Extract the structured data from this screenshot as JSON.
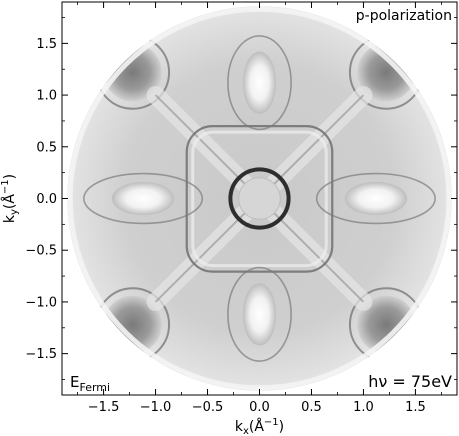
{
  "chart_data": {
    "type": "heatmap",
    "title": "",
    "xlabel": "k_x(Å^-1)",
    "ylabel": "k_y(Å^-1)",
    "xlim": [
      -1.9,
      1.9
    ],
    "ylim": [
      -1.9,
      1.9
    ],
    "x_ticks": [
      -1.5,
      -1.0,
      -0.5,
      0.0,
      0.5,
      1.0,
      1.5
    ],
    "y_ticks": [
      -1.5,
      -1.0,
      -0.5,
      0.0,
      0.5,
      1.0,
      1.5
    ],
    "x_tick_labels": [
      "−1.5",
      "−1.0",
      "−0.5",
      "0.0",
      "0.5",
      "1.0",
      "1.5"
    ],
    "y_tick_labels": [
      "−1.5",
      "−1.0",
      "−0.5",
      "0.0",
      "0.5",
      "1.0",
      "1.5"
    ],
    "grid": false,
    "colormap": "grayscale (white = high intensity, dark = low)",
    "map_extent_radius": 1.85,
    "annotations": {
      "top_right": "p-polarization",
      "bottom_left": "E_Fermi",
      "bottom_right": "hν = 75eV"
    },
    "features": {
      "central_ring_radius": 0.28,
      "central_disc_radius": 0.2,
      "bright_ellipses": [
        {
          "center": [
            0.0,
            1.12
          ],
          "rx": 0.16,
          "ry": 0.3
        },
        {
          "center": [
            0.0,
            -1.12
          ],
          "rx": 0.16,
          "ry": 0.3
        },
        {
          "center": [
            -1.12,
            0.0
          ],
          "rx": 0.3,
          "ry": 0.16
        },
        {
          "center": [
            1.12,
            0.0
          ],
          "rx": 0.3,
          "ry": 0.16
        }
      ],
      "dark_lobes": [
        {
          "center": [
            -1.22,
            1.22
          ],
          "r": 0.28
        },
        {
          "center": [
            1.22,
            1.22
          ],
          "r": 0.28
        },
        {
          "center": [
            -1.22,
            -1.22
          ],
          "r": 0.28
        },
        {
          "center": [
            1.22,
            -1.22
          ],
          "r": 0.28
        }
      ],
      "square_pocket_half_width": 0.7,
      "diagonal_cross_extent": 1.0
    }
  },
  "labels": {
    "xlabel_main": "k",
    "xlabel_sub": "x",
    "xlabel_rest": "(Å",
    "xlabel_sup": "−1",
    "xlabel_end": ")",
    "ylabel_main": "k",
    "ylabel_sub": "y",
    "ylabel_rest": "(Å",
    "ylabel_sup": "−1",
    "ylabel_end": ")",
    "polarization": "p-polarization",
    "energy_main": "E",
    "energy_sub": "Fermi",
    "photon_energy": "hν = 75eV"
  }
}
